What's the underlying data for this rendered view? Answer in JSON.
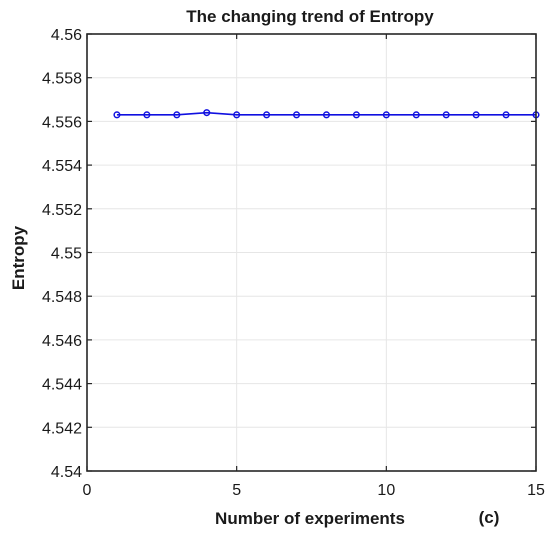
{
  "chart_data": {
    "type": "line",
    "title": "The changing trend of Entropy",
    "xlabel": "Number of experiments",
    "ylabel": "Entropy",
    "panel_label": "(c)",
    "xlim": [
      0,
      15
    ],
    "ylim": [
      4.54,
      4.56
    ],
    "x_ticks": [
      0,
      5,
      10,
      15
    ],
    "x_tick_labels": [
      "0",
      "5",
      "10",
      "15"
    ],
    "y_ticks": [
      4.54,
      4.542,
      4.544,
      4.546,
      4.548,
      4.55,
      4.552,
      4.554,
      4.556,
      4.558,
      4.56
    ],
    "y_tick_labels": [
      "4.54",
      "4.542",
      "4.544",
      "4.546",
      "4.548",
      "4.55",
      "4.552",
      "4.554",
      "4.556",
      "4.558",
      "4.56"
    ],
    "grid": true,
    "series": [
      {
        "color": "#1010e0",
        "marker": "circle",
        "x": [
          1,
          2,
          3,
          4,
          5,
          6,
          7,
          8,
          9,
          10,
          11,
          12,
          13,
          14,
          15
        ],
        "y": [
          4.5563,
          4.5563,
          4.5563,
          4.5564,
          4.5563,
          4.5563,
          4.5563,
          4.5563,
          4.5563,
          4.5563,
          4.5563,
          4.5563,
          4.5563,
          4.5563,
          4.5563
        ]
      }
    ]
  }
}
